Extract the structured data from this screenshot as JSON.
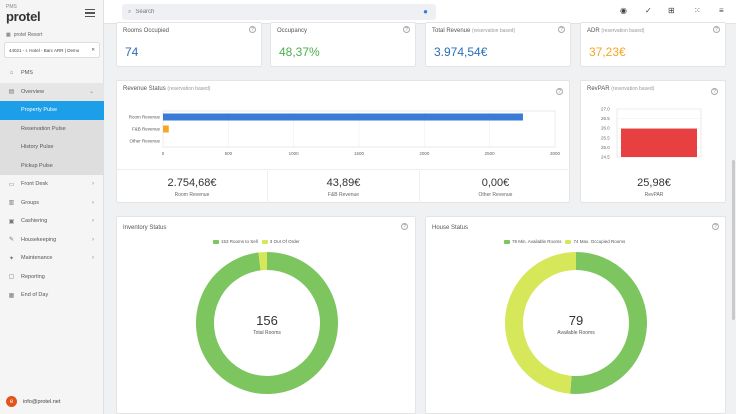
{
  "brand": {
    "small": "PMS",
    "big": "protel"
  },
  "resort": "protel Resort",
  "hotel": "44021 - I. Hotel - Barc ARR | Demo",
  "nav": [
    {
      "label": "PMS",
      "icon": "home-icon",
      "type": "top"
    },
    {
      "label": "Overview",
      "icon": "grid-icon",
      "type": "group",
      "chevron": "⌄"
    },
    {
      "label": "Property Pulse",
      "type": "active"
    },
    {
      "label": "Reservation Pulse",
      "type": "sub"
    },
    {
      "label": "History Pulse",
      "type": "sub"
    },
    {
      "label": "Pickup Pulse",
      "type": "sub"
    },
    {
      "label": "Front Desk",
      "icon": "desk-icon",
      "type": "top",
      "chevron": "›"
    },
    {
      "label": "Groups",
      "icon": "groups-icon",
      "type": "top",
      "chevron": "›"
    },
    {
      "label": "Cashiering",
      "icon": "cash-icon",
      "type": "top",
      "chevron": "›"
    },
    {
      "label": "Housekeeping",
      "icon": "broom-icon",
      "type": "top",
      "chevron": "›"
    },
    {
      "label": "Maintenance",
      "icon": "wrench-icon",
      "type": "top",
      "chevron": "›"
    },
    {
      "label": "Reporting",
      "icon": "report-icon",
      "type": "top"
    },
    {
      "label": "End of Day",
      "icon": "calendar-icon",
      "type": "top"
    }
  ],
  "user": {
    "initial": "e",
    "email": "info@protel.net"
  },
  "search": {
    "placeholder": "Search"
  },
  "kpis": [
    {
      "title": "Rooms Occupied",
      "sub": "",
      "value": "74",
      "color": "#2a6fb8"
    },
    {
      "title": "Occupancy",
      "sub": "",
      "value": "48,37%",
      "color": "#4caf50"
    },
    {
      "title": "Total Revenue",
      "sub": "(reservation based)",
      "value": "3.974,54€",
      "color": "#2a6fb8"
    },
    {
      "title": "ADR",
      "sub": "(reservation based)",
      "value": "37,23€",
      "color": "#f5a623"
    }
  ],
  "revenue": {
    "title": "Revenue Status",
    "sub": "(reservation based)",
    "stats": [
      {
        "value": "2.754,68€",
        "label": "Room Revenue"
      },
      {
        "value": "43,89€",
        "label": "F&B Revenue"
      },
      {
        "value": "0,00€",
        "label": "Other Revenue"
      }
    ]
  },
  "revpar": {
    "title": "RevPAR",
    "sub": "(reservation based)",
    "value": "25,98€",
    "label": "RevPAR"
  },
  "chart_data": [
    {
      "type": "bar",
      "orientation": "horizontal",
      "categories": [
        "Room Revenue",
        "F&B Revenue",
        "Other Revenue"
      ],
      "values": [
        2754.68,
        43.89,
        0
      ],
      "colors": [
        "#3a7bd5",
        "#f5a623",
        "#888888"
      ],
      "xlim": [
        0,
        3000
      ],
      "xticks": [
        "0",
        "500",
        "1000",
        "1500",
        "2000",
        "2500",
        "3000"
      ]
    },
    {
      "type": "bar",
      "categories": [
        "RevPAR"
      ],
      "values": [
        25.98
      ],
      "colors": [
        "#e84040"
      ],
      "ylim": [
        24.5,
        27
      ],
      "yticks": [
        "27.0",
        "26.5",
        "26.0",
        "25.5",
        "25.0",
        "24.5"
      ]
    }
  ],
  "inventory": {
    "title": "Inventory Status",
    "legend": [
      {
        "count": "153",
        "label": "Rooms to Sell",
        "color": "#7cc55f"
      },
      {
        "count": "3",
        "label": "Out Of Order",
        "color": "#d6e85a"
      }
    ],
    "values": [
      153,
      3
    ],
    "center_value": "156",
    "center_label": "Total Rooms"
  },
  "house": {
    "title": "House Status",
    "legend": [
      {
        "count": "78",
        "label": "Min. Available Rooms",
        "color": "#7cc55f"
      },
      {
        "count": "74",
        "label": "Max. Occupied Rooms",
        "color": "#d6e85a"
      }
    ],
    "values": [
      78,
      74
    ],
    "center_value": "79",
    "center_label": "Available Rooms"
  }
}
